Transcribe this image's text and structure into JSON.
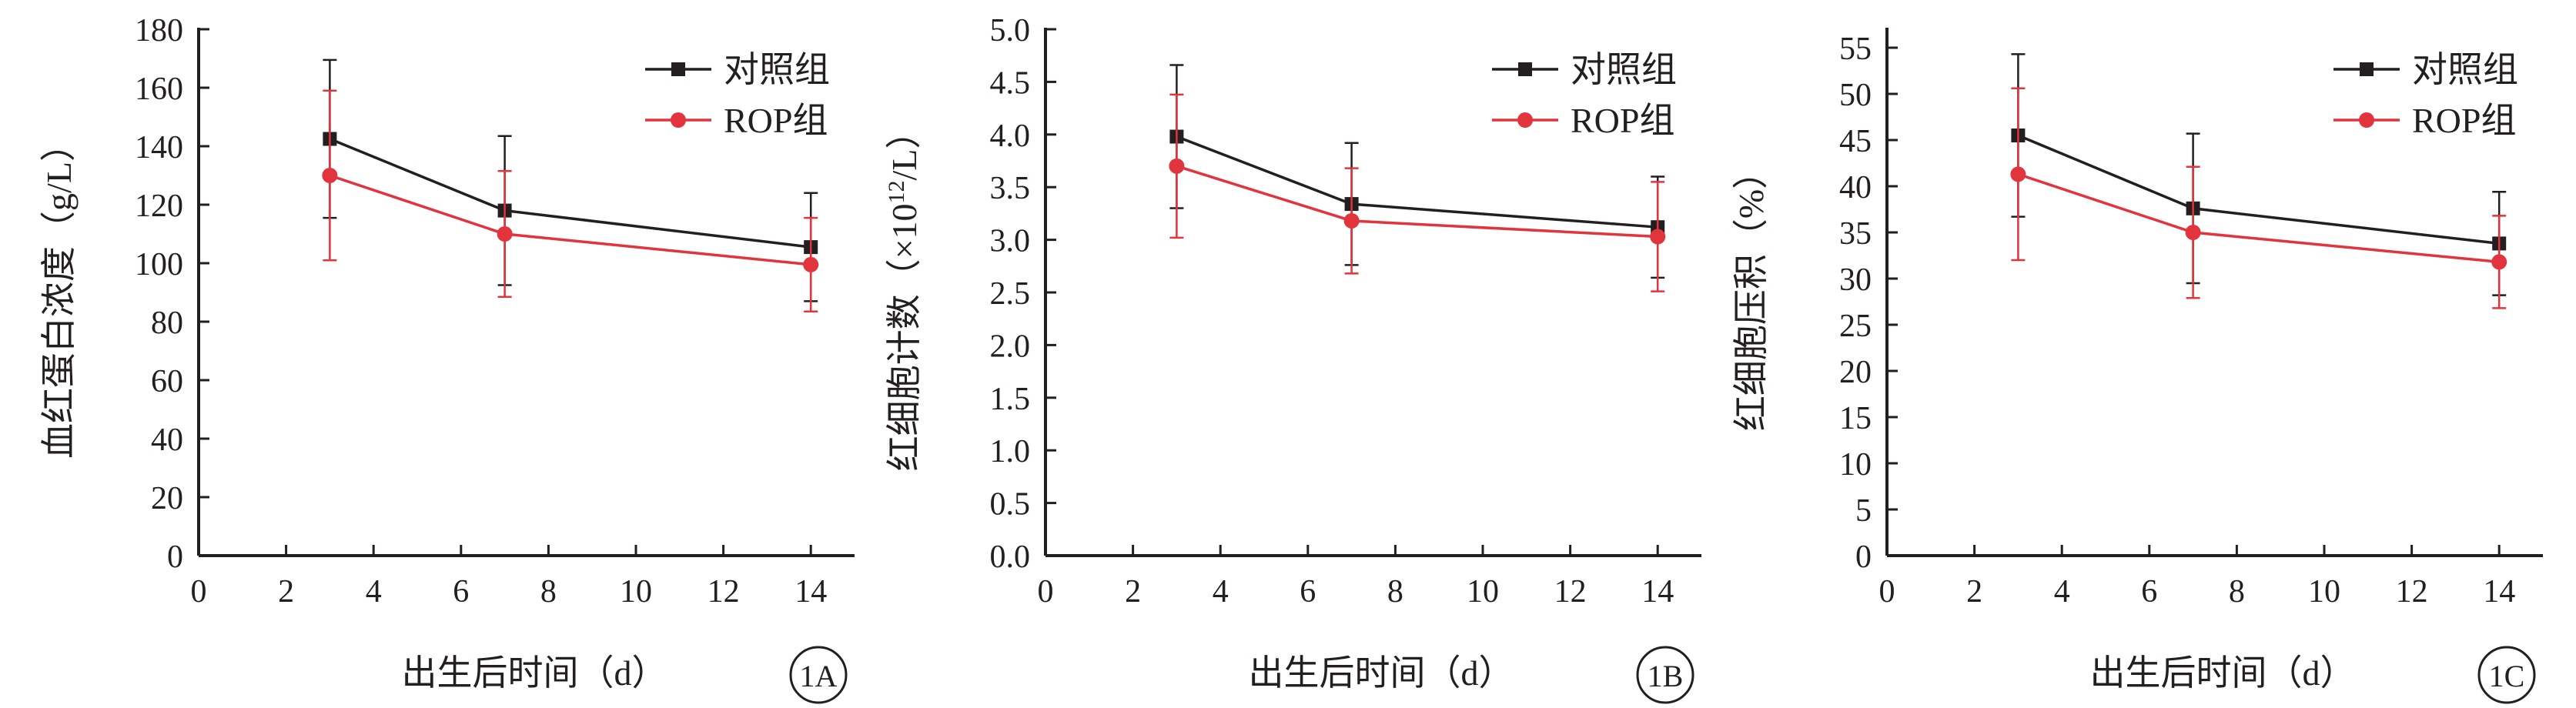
{
  "chart_data": [
    {
      "panel_label": "1A",
      "type": "line",
      "xlabel": "出生后时间（d）",
      "ylabel": "血红蛋白浓度（g/L）",
      "xlim": [
        0,
        15
      ],
      "ylim": [
        0,
        180
      ],
      "xticks": [
        0,
        2,
        4,
        6,
        8,
        10,
        12,
        14
      ],
      "yticks": [
        0,
        20,
        40,
        60,
        80,
        100,
        120,
        140,
        160,
        180
      ],
      "ytick_decimals": 0,
      "legend_position": "top-right",
      "grid": false,
      "x": [
        3,
        7,
        14
      ],
      "series": [
        {
          "name": "对照组",
          "color": "#231f20",
          "marker": "square",
          "values": [
            142.5,
            118,
            105.5
          ],
          "error": [
            27,
            25.5,
            18.5
          ]
        },
        {
          "name": "ROP组",
          "color": "#e2343c",
          "marker": "circle",
          "values": [
            130,
            110,
            99.5
          ],
          "error": [
            29,
            21.5,
            16
          ]
        }
      ]
    },
    {
      "panel_label": "1B",
      "type": "line",
      "xlabel": "出生后时间（d）",
      "ylabel_prefix": "红细胞计数（×10",
      "ylabel_superscript": "12",
      "ylabel_suffix": "/L）",
      "xlim": [
        0,
        15
      ],
      "ylim": [
        0,
        5
      ],
      "xticks": [
        0,
        2,
        4,
        6,
        8,
        10,
        12,
        14
      ],
      "yticks": [
        0,
        0.5,
        1,
        1.5,
        2,
        2.5,
        3,
        3.5,
        4,
        4.5,
        5
      ],
      "ytick_decimals": 1,
      "legend_position": "top-right",
      "grid": false,
      "x": [
        3,
        7,
        14
      ],
      "series": [
        {
          "name": "对照组",
          "color": "#231f20",
          "marker": "square",
          "values": [
            3.98,
            3.34,
            3.12
          ],
          "error": [
            0.68,
            0.58,
            0.48
          ]
        },
        {
          "name": "ROP组",
          "color": "#e2343c",
          "marker": "circle",
          "values": [
            3.7,
            3.18,
            3.03
          ],
          "error": [
            0.68,
            0.5,
            0.52
          ]
        }
      ]
    },
    {
      "panel_label": "1C",
      "type": "line",
      "xlabel": "出生后时间（d）",
      "ylabel": "红细胞压积（%）",
      "xlim": [
        0,
        15
      ],
      "ylim": [
        0,
        57
      ],
      "xticks": [
        0,
        2,
        4,
        6,
        8,
        10,
        12,
        14
      ],
      "yticks": [
        0,
        5,
        10,
        15,
        20,
        25,
        30,
        35,
        40,
        45,
        50,
        55
      ],
      "ytick_decimals": 0,
      "legend_position": "top-right",
      "grid": false,
      "x": [
        3,
        7,
        14
      ],
      "series": [
        {
          "name": "对照组",
          "color": "#231f20",
          "marker": "square",
          "values": [
            45.5,
            37.6,
            33.8
          ],
          "error": [
            8.8,
            8.1,
            5.6
          ]
        },
        {
          "name": "ROP组",
          "color": "#e2343c",
          "marker": "circle",
          "values": [
            41.3,
            35,
            31.8
          ],
          "error": [
            9.3,
            7.1,
            5
          ]
        }
      ]
    }
  ]
}
